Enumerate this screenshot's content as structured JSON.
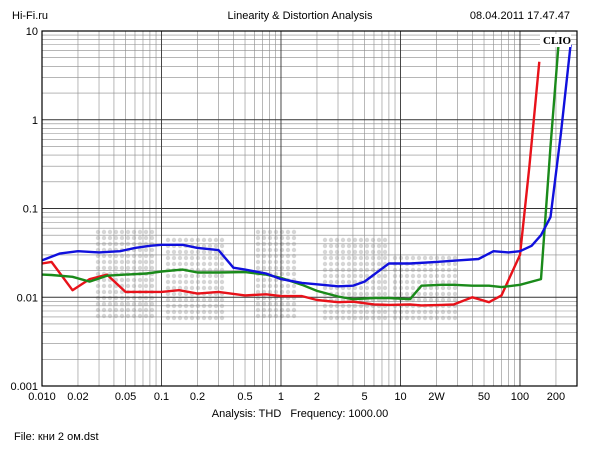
{
  "header": {
    "site": "Hi-Fi.ru",
    "title": "Linearity & Distortion Analysis",
    "timestamp": "08.04.2011 17.47.47"
  },
  "brand": "CLIO",
  "footer": {
    "analysis_label": "Analysis: THD",
    "frequency_label": "Frequency: 1000.00",
    "file_label": "File: кни 2 ом.dst"
  },
  "chart_data": {
    "type": "line",
    "title": "Linearity & Distortion Analysis",
    "xlabel": "",
    "ylabel": "",
    "x_scale": "log",
    "y_scale": "log",
    "xlim": [
      0.01,
      300
    ],
    "ylim": [
      0.001,
      10
    ],
    "grid": true,
    "x_tick_labels": [
      {
        "v": 0.01,
        "t": "0.010"
      },
      {
        "v": 0.02,
        "t": "0.02"
      },
      {
        "v": 0.05,
        "t": "0.05"
      },
      {
        "v": 0.1,
        "t": "0.1"
      },
      {
        "v": 0.2,
        "t": "0.2"
      },
      {
        "v": 0.5,
        "t": "0.5"
      },
      {
        "v": 1,
        "t": "1"
      },
      {
        "v": 2,
        "t": "2"
      },
      {
        "v": 5,
        "t": "5"
      },
      {
        "v": 10,
        "t": "10"
      },
      {
        "v": 20,
        "t": "2W"
      },
      {
        "v": 50,
        "t": "50"
      },
      {
        "v": 100,
        "t": "100"
      },
      {
        "v": 200,
        "t": "200"
      }
    ],
    "y_tick_labels": [
      {
        "v": 0.001,
        "t": "0.001"
      },
      {
        "v": 0.01,
        "t": "0.01"
      },
      {
        "v": 0.1,
        "t": "0.1"
      },
      {
        "v": 1,
        "t": "1"
      },
      {
        "v": 10,
        "t": "10"
      }
    ],
    "series": [
      {
        "color": "#e8121a",
        "x": [
          0.01,
          0.012,
          0.018,
          0.025,
          0.035,
          0.05,
          0.075,
          0.1,
          0.14,
          0.2,
          0.3,
          0.5,
          0.75,
          1,
          1.5,
          2,
          3,
          4,
          6,
          8,
          12,
          15,
          22,
          28,
          40,
          55,
          70,
          100,
          120,
          145
        ],
        "y": [
          0.024,
          0.025,
          0.012,
          0.016,
          0.018,
          0.0115,
          0.0115,
          0.0115,
          0.012,
          0.011,
          0.0115,
          0.0105,
          0.0108,
          0.0103,
          0.0103,
          0.0093,
          0.0088,
          0.0089,
          0.0083,
          0.0082,
          0.0083,
          0.0081,
          0.0082,
          0.0083,
          0.01,
          0.0088,
          0.0105,
          0.03,
          0.3,
          4.5
        ]
      },
      {
        "color": "#1a8a1a",
        "x": [
          0.01,
          0.012,
          0.018,
          0.025,
          0.035,
          0.05,
          0.075,
          0.1,
          0.15,
          0.2,
          0.3,
          0.5,
          0.75,
          1,
          1.5,
          2,
          3,
          4,
          6,
          8,
          12,
          15,
          22,
          28,
          40,
          55,
          70,
          100,
          150,
          180,
          210
        ],
        "y": [
          0.018,
          0.0178,
          0.017,
          0.015,
          0.0175,
          0.018,
          0.0185,
          0.0195,
          0.0205,
          0.019,
          0.019,
          0.0192,
          0.018,
          0.0165,
          0.0138,
          0.0118,
          0.0102,
          0.0095,
          0.0098,
          0.0098,
          0.0095,
          0.0135,
          0.0138,
          0.0138,
          0.0135,
          0.0135,
          0.013,
          0.0138,
          0.016,
          0.5,
          7
        ]
      },
      {
        "color": "#1010dd",
        "x": [
          0.01,
          0.014,
          0.02,
          0.03,
          0.045,
          0.06,
          0.08,
          0.1,
          0.15,
          0.2,
          0.3,
          0.4,
          0.5,
          0.75,
          1,
          1.5,
          2,
          3,
          4,
          5,
          8,
          12,
          20,
          30,
          45,
          60,
          80,
          100,
          125,
          150,
          180,
          220,
          265
        ],
        "y": [
          0.026,
          0.031,
          0.033,
          0.032,
          0.033,
          0.036,
          0.038,
          0.039,
          0.039,
          0.036,
          0.034,
          0.0215,
          0.0205,
          0.0185,
          0.016,
          0.0145,
          0.014,
          0.0133,
          0.0135,
          0.015,
          0.024,
          0.024,
          0.025,
          0.026,
          0.027,
          0.033,
          0.032,
          0.033,
          0.038,
          0.05,
          0.08,
          0.7,
          7
        ]
      }
    ]
  }
}
